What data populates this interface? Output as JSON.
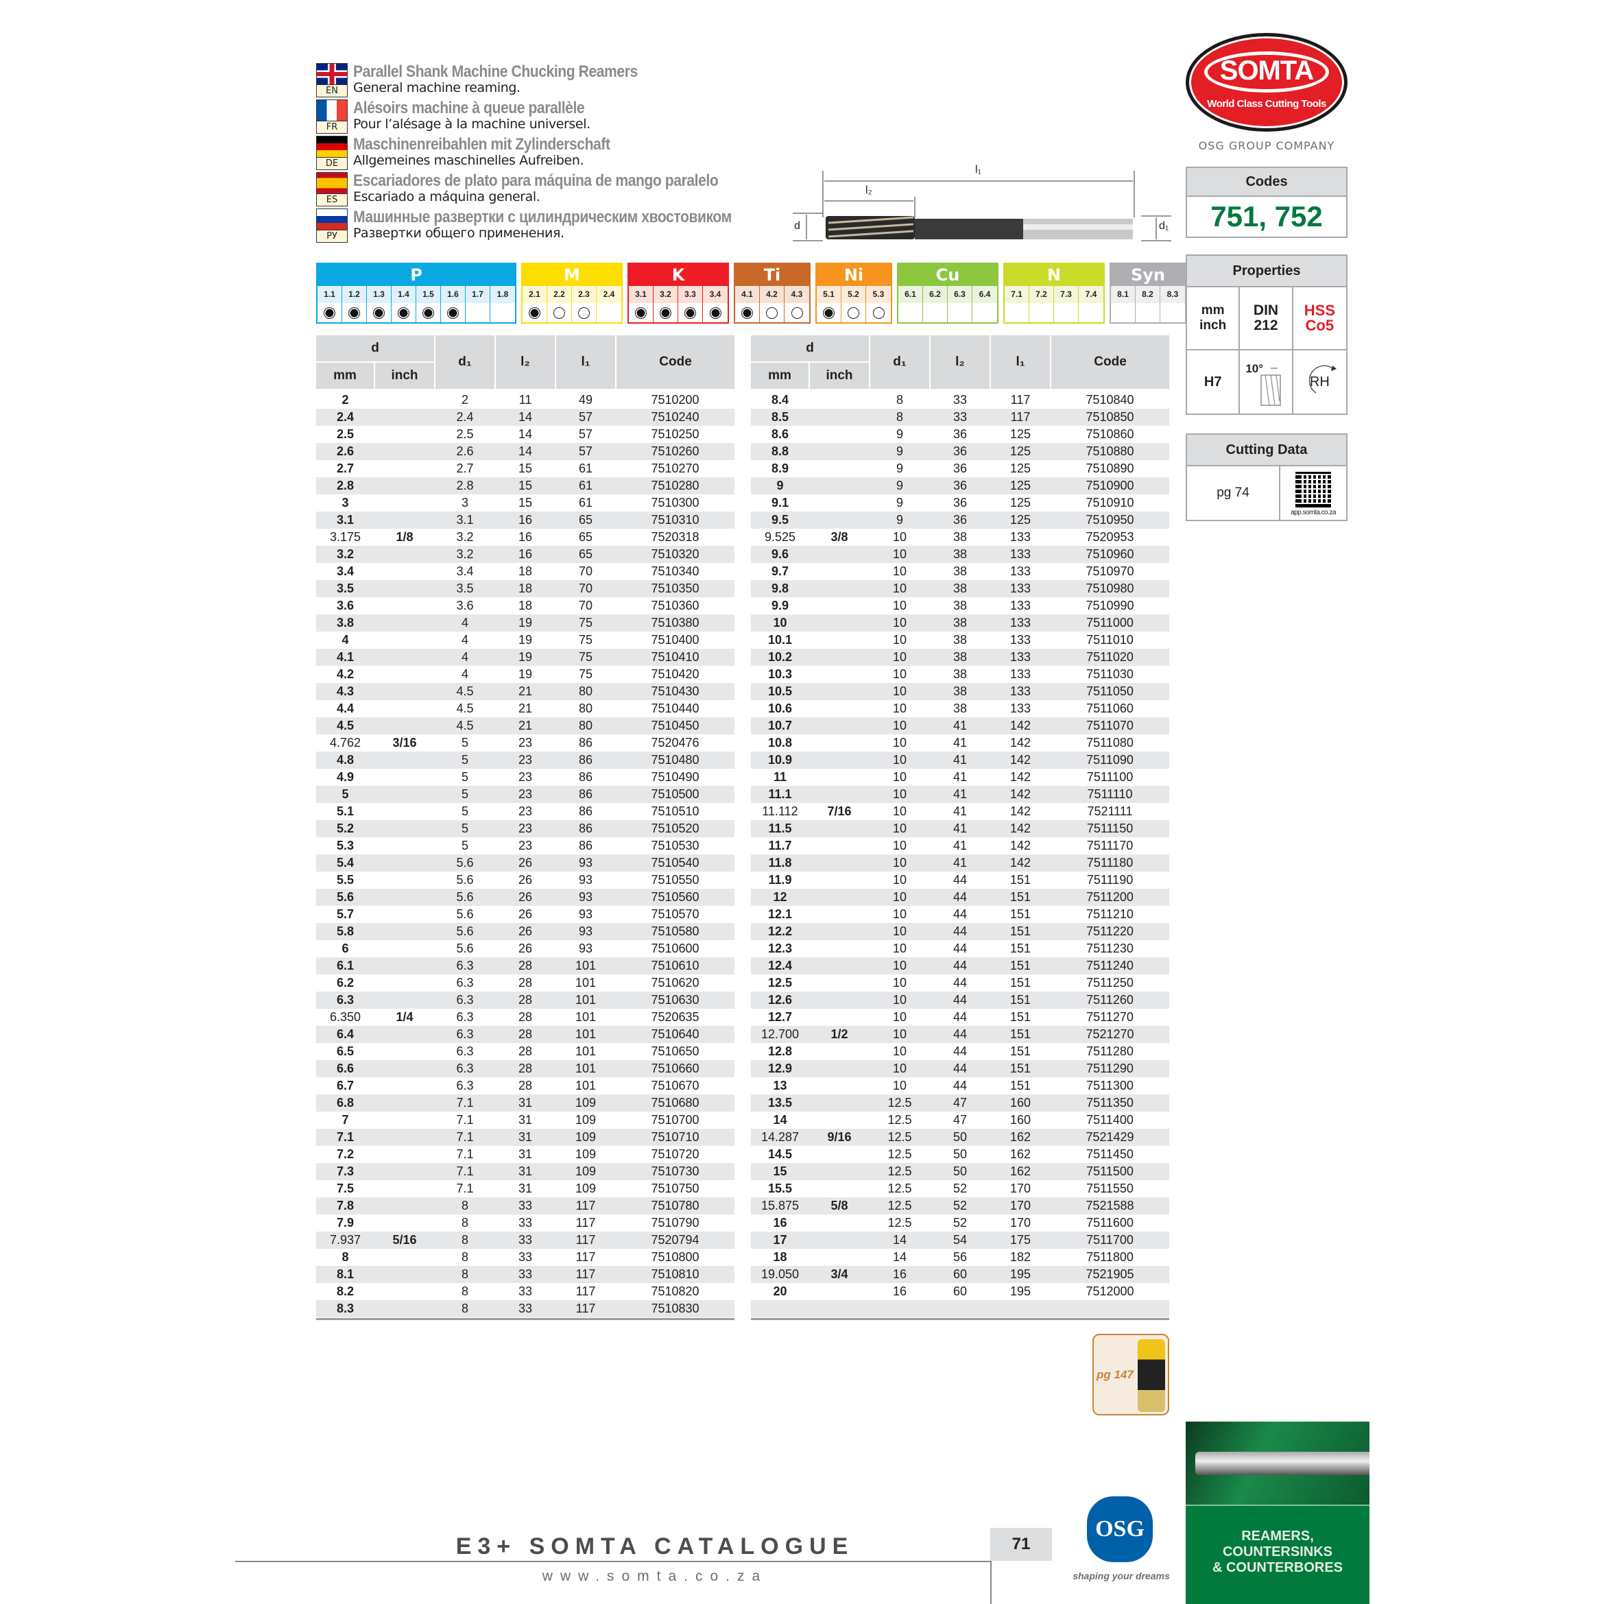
{
  "titles": [
    {
      "lang": "EN",
      "title": "Parallel Shank Machine Chucking Reamers",
      "subtitle": "General machine reaming."
    },
    {
      "lang": "FR",
      "title": "Alésoirs machine à queue parallèle",
      "subtitle": "Pour l’alésage à la machine universel."
    },
    {
      "lang": "DE",
      "title": "Maschinenreibahlen mit Zylinderschaft",
      "subtitle": "Allgemeines maschinelles Aufreiben."
    },
    {
      "lang": "ES",
      "title": "Escariadores de plato para máquina de mango paralelo",
      "subtitle": "Escariado a máquina general."
    },
    {
      "lang": "РУ",
      "title": "Машинные развертки с цилиндрическим хвостовиком",
      "subtitle": "Развертки общего применения."
    }
  ],
  "brand": {
    "logo": "SOMTA",
    "tagline": "World Class Cutting Tools",
    "group": "OSG GROUP COMPANY",
    "logo_color": "#e31e24"
  },
  "drawing": {
    "l1": "l₁",
    "l2": "l₂",
    "d": "d",
    "d1": "d₁"
  },
  "codes": {
    "header": "Codes",
    "value": "751, 752",
    "color": "#007a3d"
  },
  "properties": {
    "header": "Properties",
    "units": "mm\ninch",
    "standard": "DIN\n212",
    "material": "HSS\nCo5",
    "material_color": "#e31e24",
    "tolerance": "H7",
    "helix": "10°",
    "rotation": "RH"
  },
  "cutting_data": {
    "header": "Cutting Data",
    "page": "pg 74",
    "qr_caption": "app.somta.co.za"
  },
  "materials": [
    {
      "name": "P",
      "color": "#0aa9e1",
      "light": "#dff0fb",
      "cells": [
        [
          "1.1",
          "full"
        ],
        [
          "1.2",
          "full"
        ],
        [
          "1.3",
          "full"
        ],
        [
          "1.4",
          "full"
        ],
        [
          "1.5",
          "full"
        ],
        [
          "1.6",
          "full"
        ],
        [
          "1.7",
          ""
        ],
        [
          "1.8",
          ""
        ]
      ]
    },
    {
      "name": "M",
      "color": "#fedd00",
      "light": "#fff8d5",
      "cells": [
        [
          "2.1",
          "full"
        ],
        [
          "2.2",
          "open"
        ],
        [
          "2.3",
          "open"
        ],
        [
          "2.4",
          ""
        ]
      ]
    },
    {
      "name": "K",
      "color": "#ee1c24",
      "light": "#fde0d8",
      "cells": [
        [
          "3.1",
          "full"
        ],
        [
          "3.2",
          "full"
        ],
        [
          "3.3",
          "full"
        ],
        [
          "3.4",
          "full"
        ]
      ]
    },
    {
      "name": "Ti",
      "color": "#c8692a",
      "light": "#f4e3d5",
      "cells": [
        [
          "4.1",
          "full"
        ],
        [
          "4.2",
          "open"
        ],
        [
          "4.3",
          "open"
        ]
      ]
    },
    {
      "name": "Ni",
      "color": "#f7941d",
      "light": "#fdebd7",
      "cells": [
        [
          "5.1",
          "full"
        ],
        [
          "5.2",
          "open"
        ],
        [
          "5.3",
          "open"
        ]
      ]
    },
    {
      "name": "Cu",
      "color": "#8dc63f",
      "light": "#ebf3df",
      "cells": [
        [
          "6.1",
          ""
        ],
        [
          "6.2",
          ""
        ],
        [
          "6.3",
          ""
        ],
        [
          "6.4",
          ""
        ]
      ]
    },
    {
      "name": "N",
      "color": "#cbdb2a",
      "light": "#f3f6d8",
      "cells": [
        [
          "7.1",
          ""
        ],
        [
          "7.2",
          ""
        ],
        [
          "7.3",
          ""
        ],
        [
          "7.4",
          ""
        ]
      ]
    },
    {
      "name": "Syn",
      "color": "#aeafb2",
      "light": "#efefef",
      "cells": [
        [
          "8.1",
          ""
        ],
        [
          "8.2",
          ""
        ],
        [
          "8.3",
          ""
        ]
      ]
    }
  ],
  "table_headers": {
    "d": "d",
    "mm": "mm",
    "inch": "inch",
    "d1": "d₁",
    "l2": "l₂",
    "l1": "l₁",
    "code": "Code"
  },
  "table_left": [
    [
      "2",
      "",
      "2",
      "11",
      "49",
      "7510200"
    ],
    [
      "2.4",
      "",
      "2.4",
      "14",
      "57",
      "7510240"
    ],
    [
      "2.5",
      "",
      "2.5",
      "14",
      "57",
      "7510250"
    ],
    [
      "2.6",
      "",
      "2.6",
      "14",
      "57",
      "7510260"
    ],
    [
      "2.7",
      "",
      "2.7",
      "15",
      "61",
      "7510270"
    ],
    [
      "2.8",
      "",
      "2.8",
      "15",
      "61",
      "7510280"
    ],
    [
      "3",
      "",
      "3",
      "15",
      "61",
      "7510300"
    ],
    [
      "3.1",
      "",
      "3.1",
      "16",
      "65",
      "7510310"
    ],
    [
      "3.175",
      "1/8",
      "3.2",
      "16",
      "65",
      "7520318"
    ],
    [
      "3.2",
      "",
      "3.2",
      "16",
      "65",
      "7510320"
    ],
    [
      "3.4",
      "",
      "3.4",
      "18",
      "70",
      "7510340"
    ],
    [
      "3.5",
      "",
      "3.5",
      "18",
      "70",
      "7510350"
    ],
    [
      "3.6",
      "",
      "3.6",
      "18",
      "70",
      "7510360"
    ],
    [
      "3.8",
      "",
      "4",
      "19",
      "75",
      "7510380"
    ],
    [
      "4",
      "",
      "4",
      "19",
      "75",
      "7510400"
    ],
    [
      "4.1",
      "",
      "4",
      "19",
      "75",
      "7510410"
    ],
    [
      "4.2",
      "",
      "4",
      "19",
      "75",
      "7510420"
    ],
    [
      "4.3",
      "",
      "4.5",
      "21",
      "80",
      "7510430"
    ],
    [
      "4.4",
      "",
      "4.5",
      "21",
      "80",
      "7510440"
    ],
    [
      "4.5",
      "",
      "4.5",
      "21",
      "80",
      "7510450"
    ],
    [
      "4.762",
      "3/16",
      "5",
      "23",
      "86",
      "7520476"
    ],
    [
      "4.8",
      "",
      "5",
      "23",
      "86",
      "7510480"
    ],
    [
      "4.9",
      "",
      "5",
      "23",
      "86",
      "7510490"
    ],
    [
      "5",
      "",
      "5",
      "23",
      "86",
      "7510500"
    ],
    [
      "5.1",
      "",
      "5",
      "23",
      "86",
      "7510510"
    ],
    [
      "5.2",
      "",
      "5",
      "23",
      "86",
      "7510520"
    ],
    [
      "5.3",
      "",
      "5",
      "23",
      "86",
      "7510530"
    ],
    [
      "5.4",
      "",
      "5.6",
      "26",
      "93",
      "7510540"
    ],
    [
      "5.5",
      "",
      "5.6",
      "26",
      "93",
      "7510550"
    ],
    [
      "5.6",
      "",
      "5.6",
      "26",
      "93",
      "7510560"
    ],
    [
      "5.7",
      "",
      "5.6",
      "26",
      "93",
      "7510570"
    ],
    [
      "5.8",
      "",
      "5.6",
      "26",
      "93",
      "7510580"
    ],
    [
      "6",
      "",
      "5.6",
      "26",
      "93",
      "7510600"
    ],
    [
      "6.1",
      "",
      "6.3",
      "28",
      "101",
      "7510610"
    ],
    [
      "6.2",
      "",
      "6.3",
      "28",
      "101",
      "7510620"
    ],
    [
      "6.3",
      "",
      "6.3",
      "28",
      "101",
      "7510630"
    ],
    [
      "6.350",
      "1/4",
      "6.3",
      "28",
      "101",
      "7520635"
    ],
    [
      "6.4",
      "",
      "6.3",
      "28",
      "101",
      "7510640"
    ],
    [
      "6.5",
      "",
      "6.3",
      "28",
      "101",
      "7510650"
    ],
    [
      "6.6",
      "",
      "6.3",
      "28",
      "101",
      "7510660"
    ],
    [
      "6.7",
      "",
      "6.3",
      "28",
      "101",
      "7510670"
    ],
    [
      "6.8",
      "",
      "7.1",
      "31",
      "109",
      "7510680"
    ],
    [
      "7",
      "",
      "7.1",
      "31",
      "109",
      "7510700"
    ],
    [
      "7.1",
      "",
      "7.1",
      "31",
      "109",
      "7510710"
    ],
    [
      "7.2",
      "",
      "7.1",
      "31",
      "109",
      "7510720"
    ],
    [
      "7.3",
      "",
      "7.1",
      "31",
      "109",
      "7510730"
    ],
    [
      "7.5",
      "",
      "7.1",
      "31",
      "109",
      "7510750"
    ],
    [
      "7.8",
      "",
      "8",
      "33",
      "117",
      "7510780"
    ],
    [
      "7.9",
      "",
      "8",
      "33",
      "117",
      "7510790"
    ],
    [
      "7.937",
      "5/16",
      "8",
      "33",
      "117",
      "7520794"
    ],
    [
      "8",
      "",
      "8",
      "33",
      "117",
      "7510800"
    ],
    [
      "8.1",
      "",
      "8",
      "33",
      "117",
      "7510810"
    ],
    [
      "8.2",
      "",
      "8",
      "33",
      "117",
      "7510820"
    ],
    [
      "8.3",
      "",
      "8",
      "33",
      "117",
      "7510830"
    ]
  ],
  "table_right": [
    [
      "8.4",
      "",
      "8",
      "33",
      "117",
      "7510840"
    ],
    [
      "8.5",
      "",
      "8",
      "33",
      "117",
      "7510850"
    ],
    [
      "8.6",
      "",
      "9",
      "36",
      "125",
      "7510860"
    ],
    [
      "8.8",
      "",
      "9",
      "36",
      "125",
      "7510880"
    ],
    [
      "8.9",
      "",
      "9",
      "36",
      "125",
      "7510890"
    ],
    [
      "9",
      "",
      "9",
      "36",
      "125",
      "7510900"
    ],
    [
      "9.1",
      "",
      "9",
      "36",
      "125",
      "7510910"
    ],
    [
      "9.5",
      "",
      "9",
      "36",
      "125",
      "7510950"
    ],
    [
      "9.525",
      "3/8",
      "10",
      "38",
      "133",
      "7520953"
    ],
    [
      "9.6",
      "",
      "10",
      "38",
      "133",
      "7510960"
    ],
    [
      "9.7",
      "",
      "10",
      "38",
      "133",
      "7510970"
    ],
    [
      "9.8",
      "",
      "10",
      "38",
      "133",
      "7510980"
    ],
    [
      "9.9",
      "",
      "10",
      "38",
      "133",
      "7510990"
    ],
    [
      "10",
      "",
      "10",
      "38",
      "133",
      "7511000"
    ],
    [
      "10.1",
      "",
      "10",
      "38",
      "133",
      "7511010"
    ],
    [
      "10.2",
      "",
      "10",
      "38",
      "133",
      "7511020"
    ],
    [
      "10.3",
      "",
      "10",
      "38",
      "133",
      "7511030"
    ],
    [
      "10.5",
      "",
      "10",
      "38",
      "133",
      "7511050"
    ],
    [
      "10.6",
      "",
      "10",
      "38",
      "133",
      "7511060"
    ],
    [
      "10.7",
      "",
      "10",
      "41",
      "142",
      "7511070"
    ],
    [
      "10.8",
      "",
      "10",
      "41",
      "142",
      "7511080"
    ],
    [
      "10.9",
      "",
      "10",
      "41",
      "142",
      "7511090"
    ],
    [
      "11",
      "",
      "10",
      "41",
      "142",
      "7511100"
    ],
    [
      "11.1",
      "",
      "10",
      "41",
      "142",
      "7511110"
    ],
    [
      "11.112",
      "7/16",
      "10",
      "41",
      "142",
      "7521111"
    ],
    [
      "11.5",
      "",
      "10",
      "41",
      "142",
      "7511150"
    ],
    [
      "11.7",
      "",
      "10",
      "41",
      "142",
      "7511170"
    ],
    [
      "11.8",
      "",
      "10",
      "41",
      "142",
      "7511180"
    ],
    [
      "11.9",
      "",
      "10",
      "44",
      "151",
      "7511190"
    ],
    [
      "12",
      "",
      "10",
      "44",
      "151",
      "7511200"
    ],
    [
      "12.1",
      "",
      "10",
      "44",
      "151",
      "7511210"
    ],
    [
      "12.2",
      "",
      "10",
      "44",
      "151",
      "7511220"
    ],
    [
      "12.3",
      "",
      "10",
      "44",
      "151",
      "7511230"
    ],
    [
      "12.4",
      "",
      "10",
      "44",
      "151",
      "7511240"
    ],
    [
      "12.5",
      "",
      "10",
      "44",
      "151",
      "7511250"
    ],
    [
      "12.6",
      "",
      "10",
      "44",
      "151",
      "7511260"
    ],
    [
      "12.7",
      "",
      "10",
      "44",
      "151",
      "7511270"
    ],
    [
      "12.700",
      "1/2",
      "10",
      "44",
      "151",
      "7521270"
    ],
    [
      "12.8",
      "",
      "10",
      "44",
      "151",
      "7511280"
    ],
    [
      "12.9",
      "",
      "10",
      "44",
      "151",
      "7511290"
    ],
    [
      "13",
      "",
      "10",
      "44",
      "151",
      "7511300"
    ],
    [
      "13.5",
      "",
      "12.5",
      "47",
      "160",
      "7511350"
    ],
    [
      "14",
      "",
      "12.5",
      "47",
      "160",
      "7511400"
    ],
    [
      "14.287",
      "9/16",
      "12.5",
      "50",
      "162",
      "7521429"
    ],
    [
      "14.5",
      "",
      "12.5",
      "50",
      "162",
      "7511450"
    ],
    [
      "15",
      "",
      "12.5",
      "50",
      "162",
      "7511500"
    ],
    [
      "15.5",
      "",
      "12.5",
      "52",
      "170",
      "7511550"
    ],
    [
      "15.875",
      "5/8",
      "12.5",
      "52",
      "170",
      "7521588"
    ],
    [
      "16",
      "",
      "12.5",
      "52",
      "170",
      "7511600"
    ],
    [
      "17",
      "",
      "14",
      "54",
      "175",
      "7511700"
    ],
    [
      "18",
      "",
      "14",
      "56",
      "182",
      "7511800"
    ],
    [
      "19.050",
      "3/4",
      "16",
      "60",
      "195",
      "7521905"
    ],
    [
      "20",
      "",
      "16",
      "60",
      "195",
      "7512000"
    ]
  ],
  "coolant": {
    "page": "pg 147"
  },
  "footer": {
    "catalogue": "E3+ SOMTA CATALOGUE",
    "website": "www.somta.co.za",
    "page_number": "71",
    "osg_logo": "OSG",
    "osg_tagline": "shaping your dreams",
    "section": "REAMERS,\nCOUNTERSINKS\n& COUNTERBORES"
  }
}
